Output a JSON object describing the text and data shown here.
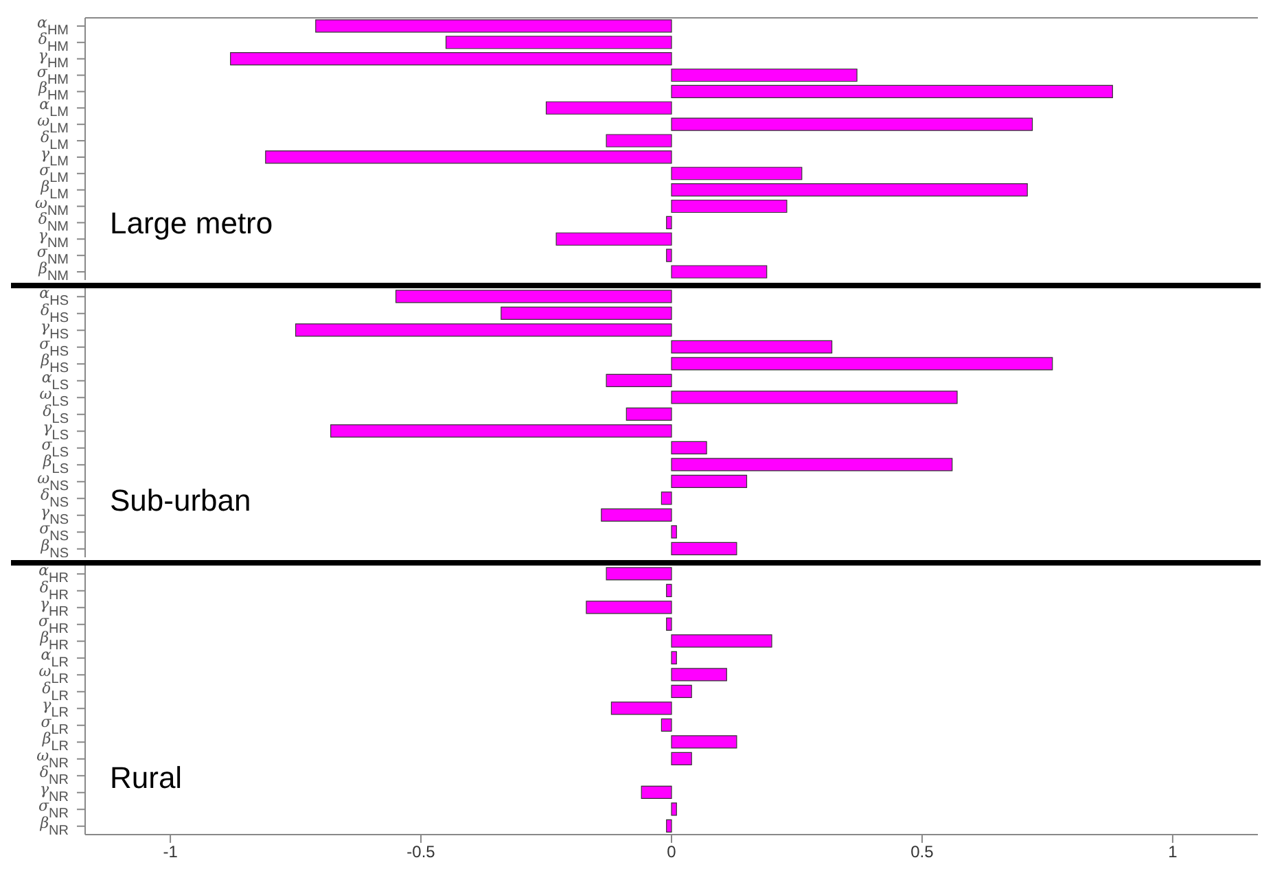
{
  "chart_data": [
    {
      "type": "bar",
      "orientation": "horizontal",
      "categories": [
        "α$_{HM}$",
        "δ$_{HM}$",
        "γ$_{HM}$",
        "σ$_{HM}$",
        "β$_{HM}$",
        "α$_{LM}$",
        "ω$_{LM}$",
        "δ$_{LM}$",
        "γ$_{LM}$",
        "σ$_{LM}$",
        "β$_{LM}$",
        "ω$_{NM}$",
        "δ$_{NM}$",
        "γ$_{NM}$",
        "σ$_{NM}$",
        "β$_{NM}$"
      ],
      "values": [
        -0.71,
        -0.45,
        -0.88,
        0.37,
        0.88,
        -0.25,
        0.72,
        -0.13,
        -0.81,
        0.26,
        0.71,
        0.23,
        -0.01,
        -0.23,
        -0.01,
        0.19
      ],
      "color": "#ff00ff",
      "xlim": [
        -1.17,
        1.17
      ],
      "xticks": [
        -1,
        -0.5,
        0,
        0.5,
        1
      ],
      "tick_labels": "y",
      "grid": false,
      "legend": false,
      "annotations": [
        "Large metro"
      ]
    },
    {
      "type": "bar",
      "orientation": "horizontal",
      "categories": [
        "α$_{HS}$",
        "δ$_{HS}$",
        "γ$_{HS}$",
        "σ$_{HS}$",
        "β$_{HS}$",
        "α$_{LS}$",
        "ω$_{LS}$",
        "δ$_{LS}$",
        "γ$_{LS}$",
        "σ$_{LS}$",
        "β$_{LS}$",
        "ω$_{NS}$",
        "δ$_{NS}$",
        "γ$_{NS}$",
        "σ$_{NS}$",
        "β$_{NS}$"
      ],
      "values": [
        -0.55,
        -0.34,
        -0.75,
        0.32,
        0.76,
        -0.13,
        0.57,
        -0.09,
        -0.68,
        0.07,
        0.56,
        0.15,
        -0.02,
        -0.14,
        0.01,
        0.13
      ],
      "color": "#ff00ff",
      "xlim": [
        -1.17,
        1.17
      ],
      "xticks": [
        -1,
        -0.5,
        0,
        0.5,
        1
      ],
      "tick_labels": "y",
      "grid": false,
      "legend": false,
      "annotations": [
        "Sub-urban"
      ]
    },
    {
      "type": "bar",
      "orientation": "horizontal",
      "categories": [
        "α$_{HR}$",
        "δ$_{HR}$",
        "γ$_{HR}$",
        "σ$_{HR}$",
        "β$_{HR}$",
        "α$_{LR}$",
        "ω$_{LR}$",
        "δ$_{LR}$",
        "γ$_{LR}$",
        "σ$_{LR}$",
        "β$_{LR}$",
        "ω$_{NR}$",
        "δ$_{NR}$",
        "γ$_{NR}$",
        "σ$_{NR}$",
        "β$_{NR}$"
      ],
      "values": [
        -0.13,
        -0.01,
        -0.17,
        -0.01,
        0.2,
        0.01,
        0.11,
        0.04,
        -0.12,
        -0.02,
        0.13,
        0.04,
        0,
        -0.06,
        0.01,
        -0.01
      ],
      "color": "#ff00ff",
      "xlim": [
        -1.17,
        1.17
      ],
      "xticks": [
        -1,
        -0.5,
        0,
        0.5,
        1
      ],
      "grid": false,
      "legend": false,
      "annotations": [
        "Rural"
      ]
    }
  ]
}
